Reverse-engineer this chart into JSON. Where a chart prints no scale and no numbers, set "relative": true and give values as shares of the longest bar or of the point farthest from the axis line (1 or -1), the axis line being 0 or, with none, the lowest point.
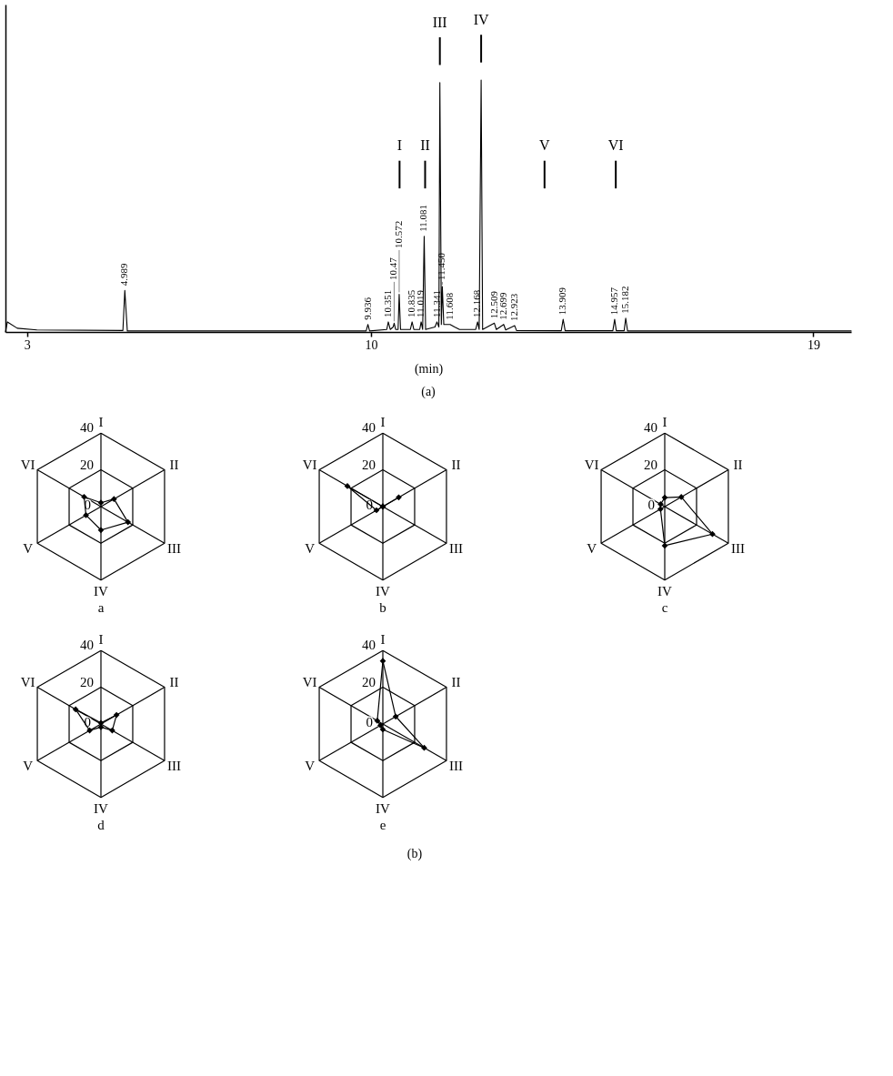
{
  "chart_data": [
    {
      "type": "line",
      "relative": true,
      "xlabel": "(min)",
      "xlim": [
        2.56,
        19.77
      ],
      "xticks": [
        3,
        10,
        19
      ],
      "series": [
        {
          "color": "#000000",
          "x": [
            2.56,
            2.6,
            2.8,
            3.2,
            4.95,
            4.989,
            5.04,
            9.9,
            9.936,
            9.97,
            10.32,
            10.351,
            10.39,
            10.45,
            10.47,
            10.5,
            10.55,
            10.572,
            10.6,
            10.8,
            10.835,
            10.87,
            10.99,
            11.019,
            11.05,
            11.081,
            11.11,
            11.3,
            11.341,
            11.38,
            11.4,
            11.43,
            11.45,
            11.48,
            11.608,
            11.7,
            11.8,
            12.13,
            12.168,
            12.2,
            12.24,
            12.27,
            12.509,
            12.55,
            12.699,
            12.74,
            12.923,
            12.96,
            13.87,
            13.909,
            13.95,
            14.92,
            14.957,
            14.99,
            15.15,
            15.182,
            15.22,
            19.77
          ],
          "values": [
            0,
            0.04,
            0.015,
            0.008,
            0.006,
            0.165,
            0.004,
            0.004,
            0.03,
            0.004,
            0.01,
            0.04,
            0.01,
            0.02,
            0.035,
            0.01,
            0.01,
            0.15,
            0.01,
            0.01,
            0.04,
            0.01,
            0.01,
            0.04,
            0.01,
            0.38,
            0.01,
            0.02,
            0.04,
            0.02,
            0.99,
            0.03,
            0.18,
            0.03,
            0.03,
            0.02,
            0.01,
            0.01,
            0.04,
            0.01,
            1.0,
            0.01,
            0.035,
            0.01,
            0.03,
            0.008,
            0.025,
            0.006,
            0.005,
            0.05,
            0.005,
            0.005,
            0.05,
            0.005,
            0.005,
            0.055,
            0.004,
            0.004
          ]
        }
      ],
      "annotations": [
        {
          "text": "4.989",
          "x": 4.989,
          "y": 0.165
        },
        {
          "text": "9.936",
          "x": 9.936,
          "y": 0.03
        },
        {
          "text": "10.351",
          "x": 10.351,
          "y": 0.04
        },
        {
          "text": "10.47",
          "x": 10.47,
          "y": 0.035
        },
        {
          "text": "10.572",
          "x": 10.572,
          "y": 0.15
        },
        {
          "text": "10.835",
          "x": 10.835,
          "y": 0.04
        },
        {
          "text": "11.019",
          "x": 11.019,
          "y": 0.04
        },
        {
          "text": "11.081",
          "x": 11.081,
          "y": 0.38
        },
        {
          "text": "11.341",
          "x": 11.341,
          "y": 0.04
        },
        {
          "text": "11.450",
          "x": 11.45,
          "y": 0.18
        },
        {
          "text": "11.608",
          "x": 11.608,
          "y": 0.03
        },
        {
          "text": "12.168",
          "x": 12.168,
          "y": 0.04
        },
        {
          "text": "12.509",
          "x": 12.509,
          "y": 0.035
        },
        {
          "text": "12.699",
          "x": 12.699,
          "y": 0.03
        },
        {
          "text": "12.923",
          "x": 12.923,
          "y": 0.025
        },
        {
          "text": "13.909",
          "x": 13.909,
          "y": 0.05
        },
        {
          "text": "14.957",
          "x": 14.957,
          "y": 0.05
        },
        {
          "text": "15.182",
          "x": 15.182,
          "y": 0.055
        },
        "(a)"
      ],
      "ref_lines": [
        {
          "axis": "x",
          "value": 10.58,
          "label": "I"
        },
        {
          "axis": "x",
          "value": 11.1,
          "label": "II"
        },
        {
          "axis": "x",
          "value": 11.4,
          "label": "III"
        },
        {
          "axis": "x",
          "value": 12.24,
          "label": "IV"
        },
        {
          "axis": "x",
          "value": 13.53,
          "label": "V"
        },
        {
          "axis": "x",
          "value": 14.98,
          "label": "VI"
        }
      ]
    },
    {
      "type": "radar",
      "title": "a",
      "categories": [
        "I",
        "II",
        "III",
        "IV",
        "V",
        "VI"
      ],
      "ylim": [
        0,
        40
      ],
      "yticks": [
        0,
        20,
        40
      ],
      "grid": true,
      "marker": "diamond",
      "series": [
        {
          "color": "#000000",
          "values": [
            2.1,
            8.2,
            17,
            12.8,
            9.4,
            10.6
          ]
        }
      ]
    },
    {
      "type": "radar",
      "title": "b",
      "categories": [
        "I",
        "II",
        "III",
        "IV",
        "V",
        "VI"
      ],
      "ylim": [
        0,
        40
      ],
      "yticks": [
        0,
        20,
        40
      ],
      "grid": true,
      "marker": "diamond",
      "series": [
        {
          "color": "#000000",
          "values": [
            0,
            10,
            0,
            0,
            4,
            22.3
          ]
        }
      ]
    },
    {
      "type": "radar",
      "title": "c",
      "categories": [
        "I",
        "II",
        "III",
        "IV",
        "V",
        "VI"
      ],
      "ylim": [
        0,
        40
      ],
      "yticks": [
        0,
        20,
        40
      ],
      "grid": true,
      "marker": "diamond",
      "series": [
        {
          "color": "#000000",
          "values": [
            4.9,
            10.4,
            30,
            21.3,
            2.7,
            2.6
          ]
        }
      ]
    },
    {
      "type": "radar",
      "title": "d",
      "categories": [
        "I",
        "II",
        "III",
        "IV",
        "V",
        "VI"
      ],
      "ylim": [
        0,
        40
      ],
      "yticks": [
        0,
        20,
        40
      ],
      "grid": true,
      "marker": "diamond",
      "series": [
        {
          "color": "#000000",
          "values": [
            0.6,
            9.8,
            7.1,
            1.7,
            7.1,
            15.9
          ]
        }
      ]
    },
    {
      "type": "radar",
      "title": "e",
      "categories": [
        "I",
        "II",
        "III",
        "IV",
        "V",
        "VI"
      ],
      "ylim": [
        0,
        40
      ],
      "yticks": [
        0,
        20,
        40
      ],
      "grid": true,
      "marker": "diamond",
      "series": [
        {
          "color": "#000000",
          "values": [
            34.3,
            8.1,
            26,
            3,
            1.5,
            3.5
          ]
        }
      ],
      "annotations": [
        "(b)"
      ]
    }
  ]
}
